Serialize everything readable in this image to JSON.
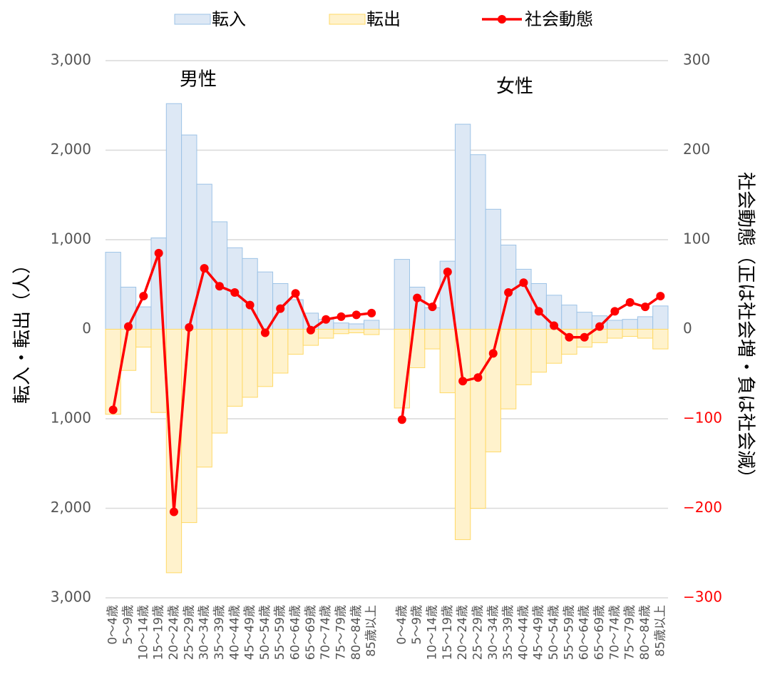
{
  "chart_data": {
    "type": "bar",
    "categories": [
      "0～4歳",
      "5～9歳",
      "10～14歳",
      "15～19歳",
      "20～24歳",
      "25～29歳",
      "30～34歳",
      "35～39歳",
      "40～44歳",
      "45～49歳",
      "50～54歳",
      "55～59歳",
      "60～64歳",
      "65～69歳",
      "70～74歳",
      "75～79歳",
      "80～84歳",
      "85歳以上",
      null,
      "0～4歳",
      "5～9歳",
      "10～14歳",
      "15～19歳",
      "20～24歳",
      "25～29歳",
      "30～34歳",
      "35～39歳",
      "40～44歳",
      "45～49歳",
      "50～54歳",
      "55～59歳",
      "60～64歳",
      "65～69歳",
      "70～74歳",
      "75～79歳",
      "80～84歳",
      "85歳以上"
    ],
    "series": [
      {
        "name": "転入",
        "type": "bar",
        "color": "#dde8f5",
        "edge": "#9dc3e6",
        "values": [
          860,
          470,
          250,
          1020,
          2520,
          2170,
          1620,
          1200,
          910,
          790,
          640,
          510,
          330,
          180,
          110,
          70,
          60,
          100,
          null,
          780,
          470,
          240,
          760,
          2290,
          1950,
          1340,
          940,
          670,
          510,
          380,
          270,
          190,
          150,
          100,
          110,
          140,
          260
        ]
      },
      {
        "name": "転出",
        "type": "bar",
        "color": "#fff2cc",
        "edge": "#ffd966",
        "values": [
          -950,
          -460,
          -200,
          -930,
          -2720,
          -2160,
          -1540,
          -1160,
          -860,
          -760,
          -640,
          -490,
          -280,
          -180,
          -100,
          -50,
          -40,
          -60,
          null,
          -880,
          -430,
          -220,
          -710,
          -2350,
          -2000,
          -1370,
          -890,
          -620,
          -480,
          -380,
          -280,
          -200,
          -150,
          -100,
          -80,
          -100,
          -220
        ]
      },
      {
        "name": "社会動態",
        "type": "line",
        "axis": "y2",
        "color": "#ff0000",
        "values": [
          -90,
          3,
          37,
          85,
          -204,
          2,
          68,
          48,
          41,
          27,
          -4,
          23,
          40,
          -1,
          11,
          14,
          16,
          18,
          null,
          -101,
          35,
          25,
          64,
          -58,
          -54,
          -27,
          41,
          52,
          20,
          4,
          -9,
          -9,
          3,
          20,
          30,
          25,
          37
        ]
      }
    ],
    "annotations": [
      "男性",
      "女性"
    ],
    "ylabel": "転入・転出（人）",
    "y2label": "社会動態（正は社会増・負は社会減）",
    "ylim": [
      -3000,
      3000
    ],
    "yticks": [
      {
        "value": -3000,
        "label": "3,000"
      },
      {
        "value": -2000,
        "label": "2,000"
      },
      {
        "value": -1000,
        "label": "1,000"
      },
      0,
      {
        "value": 1000,
        "label": "1,000"
      },
      {
        "value": 2000,
        "label": "2,000"
      },
      {
        "value": 3000,
        "label": "3,000"
      }
    ],
    "y2lim": [
      -300,
      300
    ],
    "y2ticks": [
      {
        "value": -300,
        "label": "−300"
      },
      {
        "value": -200,
        "label": "−200"
      },
      {
        "value": -100,
        "label": "−100"
      },
      0,
      100,
      200,
      300
    ],
    "y2_negative_color": "#ff0000",
    "grid": true,
    "legend": "top"
  }
}
